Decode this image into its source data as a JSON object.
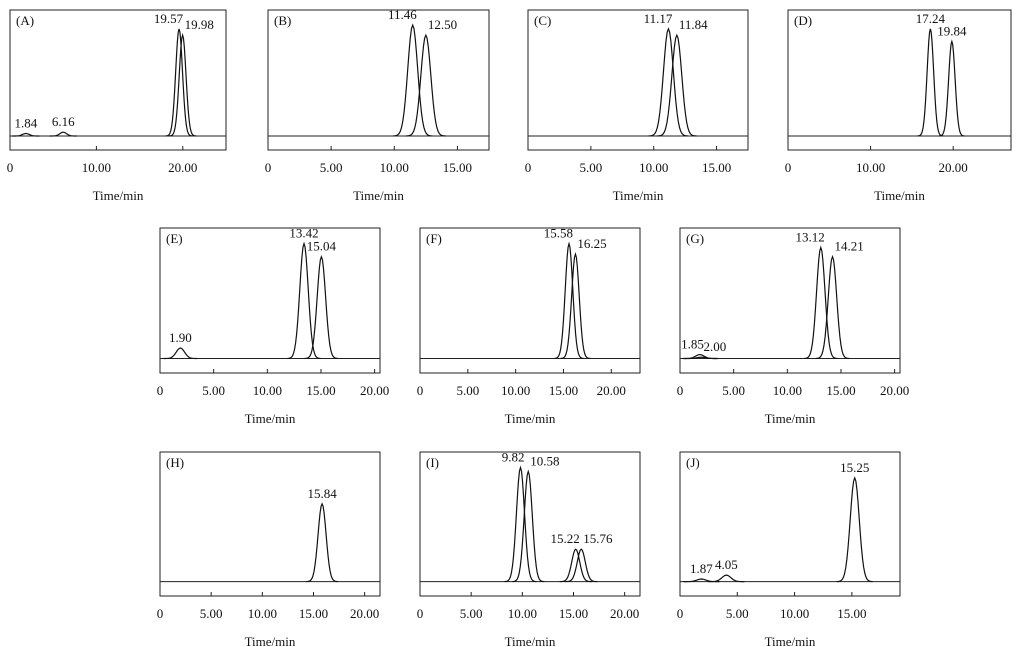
{
  "chart_data": [
    {
      "type": "line",
      "label": "(A)",
      "xlabel": "Time/min",
      "xlim": [
        0,
        25
      ],
      "ylim": [
        0,
        100
      ],
      "xticks": [
        0,
        {
          "value": 10,
          "label": "10.00"
        },
        {
          "value": 20,
          "label": "20.00"
        }
      ],
      "peaks": [
        {
          "x": 1.84,
          "label": "1.84",
          "height": 2
        },
        {
          "x": 6.16,
          "label": "6.16",
          "height": 3
        },
        {
          "x": 19.57,
          "label": "19.57",
          "height": 85
        },
        {
          "x": 19.98,
          "label": "19.98",
          "height": 80
        }
      ]
    },
    {
      "type": "line",
      "label": "(B)",
      "xlabel": "Time/min",
      "xlim": [
        0,
        17.5
      ],
      "ylim": [
        0,
        100
      ],
      "xticks": [
        0,
        {
          "value": 5,
          "label": "5.00"
        },
        {
          "value": 10,
          "label": "10.00"
        },
        {
          "value": 15,
          "label": "15.00"
        }
      ],
      "peaks": [
        {
          "x": 11.46,
          "label": "11.46",
          "height": 88
        },
        {
          "x": 12.5,
          "label": "12.50",
          "height": 80
        }
      ]
    },
    {
      "type": "line",
      "label": "(C)",
      "xlabel": "Time/min",
      "xlim": [
        0,
        17.5
      ],
      "ylim": [
        0,
        100
      ],
      "xticks": [
        0,
        {
          "value": 5,
          "label": "5.00"
        },
        {
          "value": 10,
          "label": "10.00"
        },
        {
          "value": 15,
          "label": "15.00"
        }
      ],
      "peaks": [
        {
          "x": 11.17,
          "label": "11.17",
          "height": 85
        },
        {
          "x": 11.84,
          "label": "11.84",
          "height": 80
        }
      ]
    },
    {
      "type": "line",
      "label": "(D)",
      "xlabel": "Time/min",
      "xlim": [
        0,
        27
      ],
      "ylim": [
        0,
        100
      ],
      "xticks": [
        0,
        {
          "value": 10,
          "label": "10.00"
        },
        {
          "value": 20,
          "label": "20.00"
        }
      ],
      "peaks": [
        {
          "x": 17.24,
          "label": "17.24",
          "height": 85
        },
        {
          "x": 19.84,
          "label": "19.84",
          "height": 75
        }
      ]
    },
    {
      "type": "line",
      "label": "(E)",
      "xlabel": "Time/min",
      "xlim": [
        0,
        20.5
      ],
      "ylim": [
        0,
        100
      ],
      "xticks": [
        0,
        {
          "value": 5,
          "label": "5.00"
        },
        {
          "value": 10,
          "label": "10.00"
        },
        {
          "value": 15,
          "label": "15.00"
        },
        {
          "value": 20,
          "label": "20.00"
        }
      ],
      "peaks": [
        {
          "x": 1.9,
          "label": "1.90",
          "height": 8
        },
        {
          "x": 13.42,
          "label": "13.42",
          "height": 88
        },
        {
          "x": 15.04,
          "label": "15.04",
          "height": 78
        }
      ]
    },
    {
      "type": "line",
      "label": "(F)",
      "xlabel": "Time/min",
      "xlim": [
        0,
        23
      ],
      "ylim": [
        0,
        100
      ],
      "xticks": [
        0,
        {
          "value": 5,
          "label": "5.00"
        },
        {
          "value": 10,
          "label": "10.00"
        },
        {
          "value": 15,
          "label": "15.00"
        },
        {
          "value": 20,
          "label": "20.00"
        }
      ],
      "peaks": [
        {
          "x": 15.58,
          "label": "15.58",
          "height": 88
        },
        {
          "x": 16.25,
          "label": "16.25",
          "height": 80
        }
      ]
    },
    {
      "type": "line",
      "label": "(G)",
      "xlabel": "Time/min",
      "xlim": [
        0,
        20.5
      ],
      "ylim": [
        0,
        100
      ],
      "xticks": [
        0,
        {
          "value": 5,
          "label": "5.00"
        },
        {
          "value": 10,
          "label": "10.00"
        },
        {
          "value": 15,
          "label": "15.00"
        },
        {
          "value": 20,
          "label": "20.00"
        }
      ],
      "peaks": [
        {
          "x": 1.85,
          "label": "1.85",
          "height": 3
        },
        {
          "x": 2.0,
          "label": "2.00",
          "height": 1
        },
        {
          "x": 13.12,
          "label": "13.12",
          "height": 85
        },
        {
          "x": 14.21,
          "label": "14.21",
          "height": 78
        }
      ]
    },
    {
      "type": "line",
      "label": "(H)",
      "xlabel": "Time/min",
      "xlim": [
        0,
        21.5
      ],
      "ylim": [
        0,
        100
      ],
      "xticks": [
        0,
        {
          "value": 5,
          "label": "5.00"
        },
        {
          "value": 10,
          "label": "10.00"
        },
        {
          "value": 15,
          "label": "15.00"
        },
        {
          "value": 20,
          "label": "20.00"
        }
      ],
      "peaks": [
        {
          "x": 15.84,
          "label": "15.84",
          "height": 60
        }
      ]
    },
    {
      "type": "line",
      "label": "(I)",
      "xlabel": "Time/min",
      "xlim": [
        0,
        21.5
      ],
      "ylim": [
        0,
        100
      ],
      "xticks": [
        0,
        {
          "value": 5,
          "label": "5.00"
        },
        {
          "value": 10,
          "label": "10.00"
        },
        {
          "value": 15,
          "label": "15.00"
        },
        {
          "value": 20,
          "label": "20.00"
        }
      ],
      "peaks": [
        {
          "x": 9.82,
          "label": "9.82",
          "height": 88
        },
        {
          "x": 10.58,
          "label": "10.58",
          "height": 85
        },
        {
          "x": 15.22,
          "label": "15.22",
          "height": 25
        },
        {
          "x": 15.76,
          "label": "15.76",
          "height": 25
        }
      ]
    },
    {
      "type": "line",
      "label": "(J)",
      "xlabel": "Time/min",
      "xlim": [
        0,
        19.2
      ],
      "ylim": [
        0,
        100
      ],
      "xticks": [
        0,
        {
          "value": 5,
          "label": "5.00"
        },
        {
          "value": 10,
          "label": "10.00"
        },
        {
          "value": 15,
          "label": "15.00"
        }
      ],
      "peaks": [
        {
          "x": 1.87,
          "label": "1.87",
          "height": 2
        },
        {
          "x": 4.05,
          "label": "4.05",
          "height": 5
        },
        {
          "x": 15.25,
          "label": "15.25",
          "height": 80
        }
      ]
    }
  ]
}
